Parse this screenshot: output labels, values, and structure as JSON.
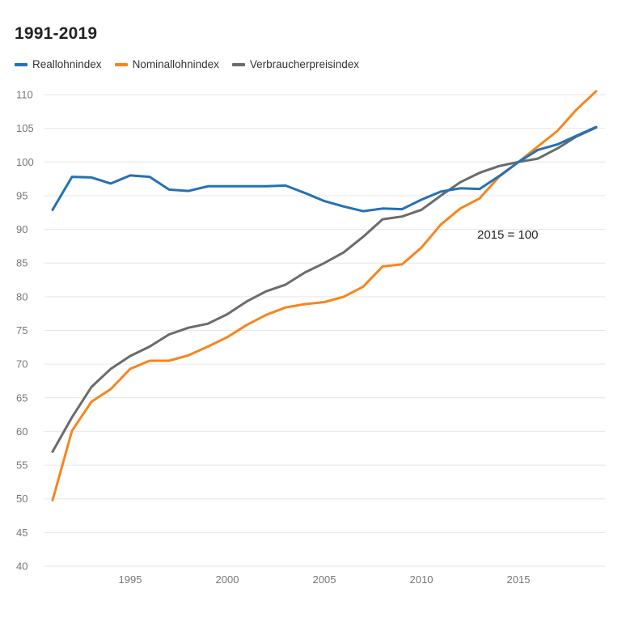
{
  "chart_data": {
    "type": "line",
    "title": "1991-2019",
    "annotation": "2015 = 100",
    "xlabel": "",
    "ylabel": "",
    "ylim": [
      40,
      110
    ],
    "xlim": [
      1991,
      2019
    ],
    "yticks": [
      40,
      45,
      50,
      55,
      60,
      65,
      70,
      75,
      80,
      85,
      90,
      95,
      100,
      105,
      110
    ],
    "xticks": [
      1995,
      2000,
      2005,
      2010,
      2015
    ],
    "grid": true,
    "legend_position": "top-left",
    "x": [
      1991,
      1992,
      1993,
      1994,
      1995,
      1996,
      1997,
      1998,
      1999,
      2000,
      2001,
      2002,
      2003,
      2004,
      2005,
      2006,
      2007,
      2008,
      2009,
      2010,
      2011,
      2012,
      2013,
      2014,
      2015,
      2016,
      2017,
      2018,
      2019
    ],
    "series": [
      {
        "name": "Reallohnindex",
        "color": "#2471b5",
        "values": [
          92.9,
          97.8,
          97.7,
          96.8,
          98.0,
          97.8,
          95.9,
          95.7,
          96.4,
          96.4,
          96.4,
          96.4,
          96.5,
          95.4,
          94.2,
          93.4,
          92.7,
          93.1,
          93.0,
          94.4,
          95.6,
          96.1,
          96.0,
          97.9,
          100.0,
          101.8,
          102.6,
          103.9,
          105.2
        ]
      },
      {
        "name": "Nominallohnindex",
        "color": "#f5861f",
        "values": [
          49.8,
          60.1,
          64.4,
          66.3,
          69.3,
          70.5,
          70.5,
          71.3,
          72.6,
          74.0,
          75.8,
          77.3,
          78.4,
          78.9,
          79.2,
          80.0,
          81.5,
          84.5,
          84.8,
          87.3,
          90.7,
          93.1,
          94.6,
          97.8,
          100.0,
          102.3,
          104.6,
          107.8,
          110.5
        ]
      },
      {
        "name": "Verbraucherpreisindex",
        "color": "#6b6b6b",
        "values": [
          57.0,
          62.1,
          66.6,
          69.3,
          71.2,
          72.6,
          74.4,
          75.4,
          76.0,
          77.4,
          79.3,
          80.8,
          81.8,
          83.6,
          85.0,
          86.6,
          88.9,
          91.5,
          91.9,
          92.9,
          95.0,
          97.0,
          98.4,
          99.4,
          100.0,
          100.5,
          102.0,
          103.8,
          105.1
        ]
      }
    ]
  }
}
